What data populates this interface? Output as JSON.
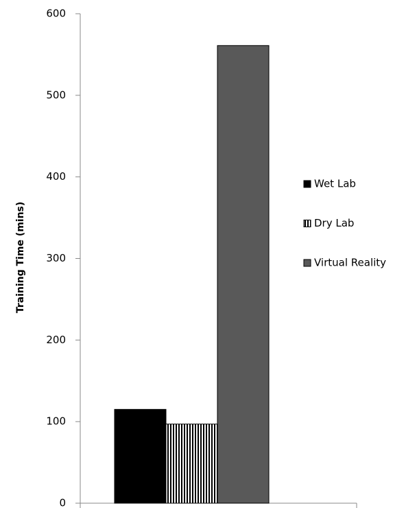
{
  "chart_data": {
    "type": "bar",
    "y_label": "Training Time (mins)",
    "categories": [
      null
    ],
    "series": [
      {
        "name": "Wet Lab",
        "color": "#000000",
        "values": [
          115
        ]
      },
      {
        "name": "Dry Lab",
        "color": "#ffffff",
        "pattern": "vertical-stripes",
        "values": [
          97
        ]
      },
      {
        "name": "Virtual Reality",
        "color": "#595959",
        "values": [
          561
        ]
      }
    ],
    "ylim": [
      0,
      600
    ],
    "yticks": [
      0,
      100,
      200,
      300,
      400,
      500,
      600
    ],
    "grid": false,
    "legend": "right"
  }
}
